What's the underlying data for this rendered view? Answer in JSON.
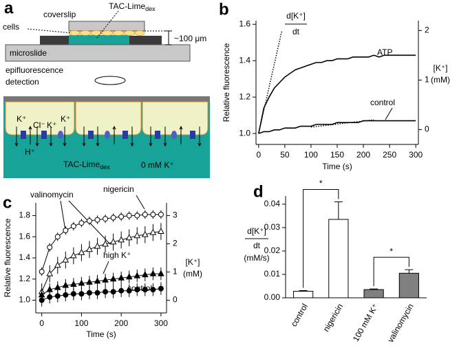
{
  "panel_labels": [
    "a",
    "b",
    "c",
    "d"
  ],
  "diagram": {
    "coverslip": "coverslip",
    "probe": "TAC-Lime",
    "probe_sub": "dex",
    "cells": "cells",
    "gap": "~100 μm",
    "microslide": "microslide",
    "detection": [
      "epifluorescence",
      "detection"
    ],
    "ions": [
      "K⁺",
      "Cl⁻",
      "K⁺",
      "K⁺",
      "H⁺"
    ],
    "bath": "TAC-Lime",
    "bath_sub": "dex",
    "bath_k": "0 mM K⁺"
  },
  "chart_data": [
    {
      "type": "line",
      "ylabel": "Relative fluorescence",
      "xlabel": "Time (s)",
      "y2label": [
        "[K⁺]",
        "(mM)"
      ],
      "annotation": {
        "numerator": "d[K⁺]",
        "denominator": "dt"
      },
      "x": [
        0,
        10,
        20,
        30,
        40,
        50,
        60,
        70,
        80,
        90,
        100,
        110,
        120,
        130,
        140,
        150,
        160,
        170,
        180,
        190,
        200,
        210,
        220,
        230,
        240,
        250,
        260,
        270,
        280,
        290,
        300
      ],
      "series": [
        {
          "name": "ATP",
          "color": "#000000",
          "values": [
            1.0,
            1.14,
            1.2,
            1.25,
            1.28,
            1.31,
            1.33,
            1.35,
            1.36,
            1.37,
            1.38,
            1.39,
            1.39,
            1.4,
            1.4,
            1.41,
            1.41,
            1.41,
            1.42,
            1.42,
            1.42,
            1.42,
            1.43,
            1.42,
            1.43,
            1.43,
            1.43,
            1.43,
            1.43,
            1.43,
            1.43
          ]
        },
        {
          "name": "control",
          "color": "#000000",
          "values": [
            1.0,
            1.01,
            1.01,
            1.02,
            1.02,
            1.03,
            1.03,
            1.03,
            1.04,
            1.04,
            1.04,
            1.05,
            1.05,
            1.05,
            1.05,
            1.06,
            1.06,
            1.06,
            1.06,
            1.06,
            1.07,
            1.07,
            1.07,
            1.07,
            1.07,
            1.07,
            1.07,
            1.07,
            1.07,
            1.07,
            1.07
          ]
        },
        {
          "color": "#000000",
          "style": "dotted",
          "x": [
            0,
            44
          ],
          "values": [
            1.0,
            1.56
          ]
        },
        {
          "color": "#000000",
          "style": "dotted",
          "x": [
            100,
            220
          ],
          "values": [
            1.035,
            1.075
          ]
        }
      ],
      "xlim": [
        -5,
        305
      ],
      "xticks": [
        0,
        50,
        100,
        150,
        200,
        250,
        300
      ],
      "ylim": [
        0.94,
        1.62
      ],
      "yticks": [
        {
          "value": 1.0,
          "label": "1.0"
        },
        1.2,
        1.4,
        1.6
      ],
      "y2lim": [
        -0.3,
        2.2
      ],
      "y2ticks": [
        0,
        1,
        2
      ]
    },
    {
      "type": "line",
      "ylabel": "Relative fluorescence",
      "xlabel": "Time (s)",
      "y2label": [
        "[K⁺]",
        "(mM)"
      ],
      "x": [
        0,
        20,
        40,
        60,
        80,
        100,
        120,
        140,
        160,
        180,
        200,
        220,
        240,
        260,
        280,
        300
      ],
      "series": [
        {
          "name": "nigericin",
          "color": "#000000",
          "marker": "open-circle",
          "values": [
            1.27,
            1.5,
            1.6,
            1.66,
            1.7,
            1.73,
            1.75,
            1.76,
            1.77,
            1.78,
            1.79,
            1.8,
            1.8,
            1.81,
            1.81,
            1.81
          ],
          "errors": [
            0.04,
            0.04,
            0.04,
            0.04,
            0.04,
            0.04,
            0.04,
            0.04,
            0.04,
            0.04,
            0.04,
            0.04,
            0.04,
            0.04,
            0.04,
            0.04
          ]
        },
        {
          "name": "valinomycin",
          "color": "#000000",
          "marker": "open-triangle",
          "values": [
            1.08,
            1.25,
            1.33,
            1.38,
            1.42,
            1.45,
            1.48,
            1.51,
            1.53,
            1.55,
            1.57,
            1.59,
            1.61,
            1.62,
            1.64,
            1.65
          ],
          "errors": [
            0.08,
            0.08,
            0.08,
            0.08,
            0.08,
            0.08,
            0.08,
            0.08,
            0.08,
            0.08,
            0.08,
            0.08,
            0.08,
            0.08,
            0.08,
            0.08
          ]
        },
        {
          "name": "high K⁺",
          "color": "#000000",
          "marker": "filled-triangle",
          "values": [
            1.05,
            1.1,
            1.12,
            1.14,
            1.15,
            1.16,
            1.17,
            1.18,
            1.19,
            1.2,
            1.21,
            1.22,
            1.23,
            1.24,
            1.25,
            1.25
          ],
          "errors": [
            0.06,
            0.06,
            0.06,
            0.06,
            0.06,
            0.06,
            0.06,
            0.06,
            0.06,
            0.06,
            0.06,
            0.06,
            0.06,
            0.06,
            0.06,
            0.06
          ]
        },
        {
          "name": "control",
          "color": "#000000",
          "marker": "filled-circle",
          "values": [
            1.0,
            1.03,
            1.04,
            1.05,
            1.06,
            1.06,
            1.07,
            1.07,
            1.08,
            1.08,
            1.09,
            1.09,
            1.1,
            1.1,
            1.1,
            1.11
          ],
          "errors": [
            0.06,
            0.06,
            0.06,
            0.06,
            0.06,
            0.06,
            0.06,
            0.06,
            0.06,
            0.06,
            0.06,
            0.06,
            0.06,
            0.06,
            0.06,
            0.06
          ]
        }
      ],
      "xlim": [
        -15,
        314
      ],
      "xticks": [
        0,
        100,
        200,
        300
      ],
      "ylim": [
        0.88,
        1.92
      ],
      "yticks": [
        {
          "value": 1.0,
          "label": "1.0"
        },
        1.2,
        1.4,
        1.6,
        1.8
      ],
      "y2lim": [
        -0.45,
        3.45
      ],
      "y2ticks": [
        0,
        1,
        2,
        3
      ]
    },
    {
      "type": "bar",
      "ylabel": {
        "numerator": "d[K⁺]",
        "denominator": "dt",
        "unit": "(mM/s)"
      },
      "categories": [
        "control",
        "nigericin",
        "100 mM K⁺",
        "valinomycin"
      ],
      "values": [
        0.0028,
        0.0335,
        0.0035,
        0.0105
      ],
      "errors": [
        0.0003,
        0.0075,
        0.0003,
        0.0015
      ],
      "colors": [
        "#ffffff",
        "#ffffff",
        "#808080",
        "#808080"
      ],
      "ylim": [
        0,
        0.0435
      ],
      "yticks": [
        {
          "value": 0,
          "label": "0.00"
        },
        0.01,
        0.02,
        0.03,
        0.04
      ],
      "brackets": [
        {
          "categories": [
            0,
            1
          ],
          "label": "*"
        },
        {
          "categories": [
            2,
            3
          ],
          "label": "*"
        }
      ]
    }
  ]
}
